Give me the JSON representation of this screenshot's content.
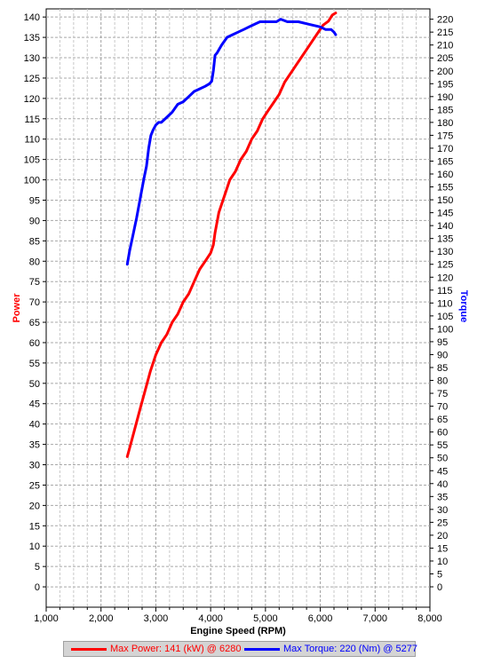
{
  "chart_data": {
    "type": "line",
    "xlabel": "Engine Speed (RPM)",
    "ylabel_left": "Power",
    "ylabel_right": "Torque",
    "xlim": [
      1000,
      8000
    ],
    "x_ticks": [
      "1,000",
      "2,000",
      "3,000",
      "4,000",
      "5,000",
      "6,000",
      "7,000",
      "8,000"
    ],
    "x_tick_values": [
      1000,
      2000,
      3000,
      4000,
      5000,
      6000,
      7000,
      8000
    ],
    "ylim_left": [
      -5,
      142
    ],
    "ylim_right": [
      -7.9,
      224
    ],
    "y_left_ticks": [
      0,
      5,
      10,
      15,
      20,
      25,
      30,
      35,
      40,
      45,
      50,
      55,
      60,
      65,
      70,
      75,
      80,
      85,
      90,
      95,
      100,
      105,
      110,
      115,
      120,
      125,
      130,
      135,
      140
    ],
    "y_right_ticks": [
      0,
      5,
      10,
      15,
      20,
      25,
      30,
      35,
      40,
      45,
      50,
      55,
      60,
      65,
      70,
      75,
      80,
      85,
      90,
      95,
      100,
      105,
      110,
      115,
      120,
      125,
      130,
      135,
      140,
      145,
      150,
      155,
      160,
      165,
      170,
      175,
      180,
      185,
      190,
      195,
      200,
      205,
      210,
      215,
      220
    ],
    "grid": true,
    "legend_position": "bottom",
    "series": [
      {
        "name": "Max Power: 141 (kW) @ 6280",
        "axis": "left",
        "color": "#ff0000",
        "x": [
          2480,
          2560,
          2640,
          2720,
          2800,
          2900,
          3000,
          3100,
          3200,
          3300,
          3400,
          3500,
          3600,
          3700,
          3800,
          3900,
          4000,
          4050,
          4080,
          4150,
          4250,
          4350,
          4450,
          4550,
          4650,
          4750,
          4850,
          4950,
          5050,
          5150,
          5250,
          5350,
          5450,
          5550,
          5650,
          5750,
          5850,
          5950,
          6050,
          6150,
          6220,
          6280
        ],
        "y": [
          32,
          36,
          40,
          44,
          48,
          53,
          57,
          60,
          62,
          65,
          67,
          70,
          72,
          75,
          78,
          80,
          82,
          84,
          87,
          92,
          96,
          100,
          102,
          105,
          107,
          110,
          112,
          115,
          117,
          119,
          121,
          124,
          126,
          128,
          130,
          132,
          134,
          136,
          138,
          139,
          140.5,
          141
        ]
      },
      {
        "name": "Max Torque: 220 (Nm) @ 5277",
        "axis": "right",
        "color": "#0000ff",
        "x": [
          2480,
          2520,
          2580,
          2650,
          2720,
          2780,
          2830,
          2870,
          2910,
          2950,
          3000,
          3050,
          3100,
          3200,
          3300,
          3400,
          3500,
          3600,
          3700,
          3800,
          3900,
          3980,
          4020,
          4050,
          4080,
          4120,
          4200,
          4300,
          4400,
          4500,
          4600,
          4700,
          4800,
          4900,
          5000,
          5100,
          5200,
          5277,
          5400,
          5600,
          5800,
          6000,
          6100,
          6200,
          6250,
          6280
        ],
        "y": [
          125,
          130,
          136,
          143,
          151,
          158,
          163,
          170,
          175,
          177,
          179,
          180,
          180,
          182,
          184,
          187,
          188,
          190,
          192,
          193,
          194,
          195,
          196,
          200,
          206,
          207,
          210,
          213,
          214,
          215,
          216,
          217,
          218,
          219,
          219,
          219,
          219,
          220,
          219,
          219,
          218,
          217,
          216,
          216,
          215,
          214
        ]
      }
    ]
  }
}
